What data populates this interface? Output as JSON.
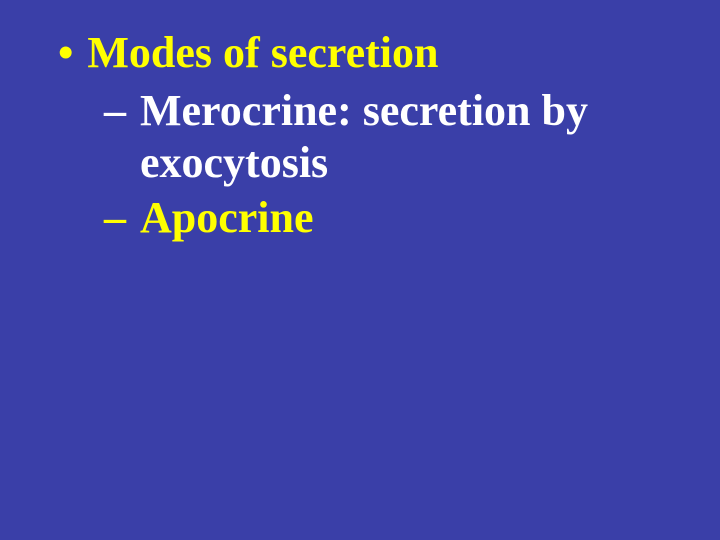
{
  "slide": {
    "background_color": "#3a3fa8",
    "font_family": "Times New Roman",
    "main_fontsize": 44,
    "font_weight": "bold",
    "bullet": {
      "marker": "•",
      "text": "Modes of secretion",
      "color": "#ffff00"
    },
    "subitems": [
      {
        "marker": "–",
        "text": "Merocrine: secretion by exocytosis",
        "color": "#ffffff"
      },
      {
        "marker": "–",
        "text": "Apocrine",
        "color": "#ffff00"
      }
    ]
  }
}
